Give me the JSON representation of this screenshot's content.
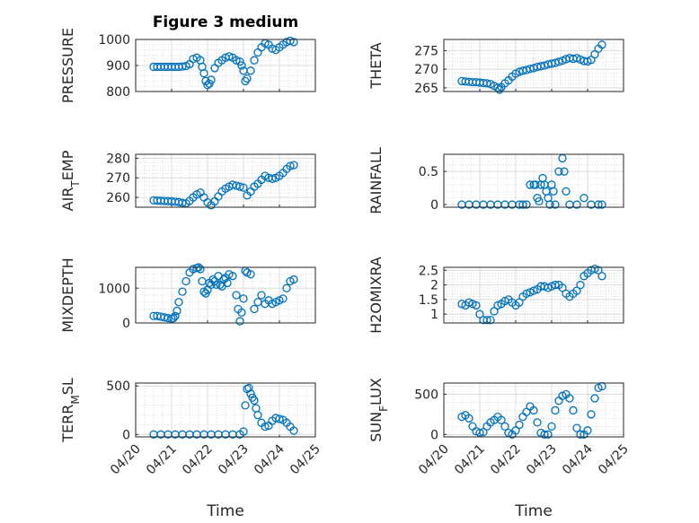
{
  "figure": {
    "title": "Figure 3 medium",
    "xlabel": "Time",
    "x_ticks": [
      "04/20",
      "04/21",
      "04/22",
      "04/23",
      "04/24",
      "04/25"
    ],
    "marker_color": "#0072BD"
  },
  "chart_data": [
    {
      "type": "scatter",
      "ylabel": "PRESSURE",
      "ylim": [
        800,
        1000
      ],
      "yticks": [
        "800",
        "900",
        "1000"
      ],
      "grid": true,
      "x": [
        20.5,
        20.6,
        20.7,
        20.8,
        20.9,
        21.0,
        21.1,
        21.2,
        21.3,
        21.4,
        21.5,
        21.6,
        21.7,
        21.8,
        21.85,
        21.9,
        21.95,
        22.0,
        22.05,
        22.1,
        22.2,
        22.3,
        22.4,
        22.5,
        22.6,
        22.7,
        22.8,
        22.9,
        22.95,
        23.0,
        23.05,
        23.1,
        23.2,
        23.3,
        23.4,
        23.5,
        23.6,
        23.7,
        23.8,
        23.9,
        24.0,
        24.1,
        24.2,
        24.3,
        24.4
      ],
      "y": [
        895,
        895,
        895,
        895,
        895,
        895,
        895,
        895,
        896,
        898,
        905,
        925,
        930,
        920,
        895,
        870,
        840,
        825,
        830,
        845,
        890,
        910,
        920,
        930,
        935,
        930,
        920,
        915,
        900,
        880,
        840,
        850,
        880,
        920,
        950,
        970,
        985,
        980,
        965,
        960,
        970,
        980,
        990,
        995,
        990
      ]
    },
    {
      "type": "scatter",
      "ylabel": "THETA",
      "ylim": [
        264,
        278
      ],
      "yticks": [
        "265",
        "270",
        "275"
      ],
      "grid": true,
      "x": [
        20.5,
        20.6,
        20.7,
        20.8,
        20.9,
        21.0,
        21.1,
        21.2,
        21.3,
        21.4,
        21.5,
        21.55,
        21.6,
        21.7,
        21.8,
        21.9,
        22.0,
        22.1,
        22.2,
        22.3,
        22.4,
        22.5,
        22.6,
        22.7,
        22.8,
        22.9,
        23.0,
        23.1,
        23.2,
        23.3,
        23.4,
        23.5,
        23.6,
        23.7,
        23.8,
        23.9,
        24.0,
        24.1,
        24.2,
        24.3,
        24.4
      ],
      "y": [
        266.8,
        266.7,
        266.6,
        266.5,
        266.5,
        266.4,
        266.3,
        266.2,
        266.0,
        265.5,
        265.0,
        264.5,
        265.2,
        266.2,
        267.0,
        268.0,
        268.8,
        269.3,
        269.6,
        269.8,
        270.1,
        270.3,
        270.6,
        270.8,
        271.0,
        271.3,
        271.5,
        271.7,
        272.0,
        272.3,
        272.7,
        273.0,
        272.8,
        273.0,
        272.6,
        272.2,
        272.1,
        272.5,
        274.0,
        275.5,
        276.6
      ]
    },
    {
      "type": "scatter",
      "ylabel": "AIR_TEMP",
      "ylim": [
        255,
        282
      ],
      "yticks": [
        "260",
        "270",
        "280"
      ],
      "grid": true,
      "x": [
        20.5,
        20.6,
        20.7,
        20.8,
        20.9,
        21.0,
        21.1,
        21.2,
        21.3,
        21.4,
        21.5,
        21.6,
        21.7,
        21.8,
        21.9,
        22.0,
        22.1,
        22.2,
        22.3,
        22.4,
        22.5,
        22.6,
        22.7,
        22.8,
        22.9,
        23.0,
        23.1,
        23.2,
        23.3,
        23.4,
        23.5,
        23.6,
        23.7,
        23.8,
        23.9,
        24.0,
        24.1,
        24.2,
        24.3,
        24.4
      ],
      "y": [
        258.5,
        258.4,
        258.3,
        258.2,
        258.1,
        258.0,
        257.8,
        257.6,
        257.2,
        257.0,
        258.2,
        260.0,
        261.5,
        262.5,
        260.0,
        257.5,
        256.0,
        258.0,
        260.5,
        263.0,
        264.5,
        265.5,
        266.5,
        266.0,
        265.5,
        265.0,
        261.0,
        263.0,
        265.5,
        267.0,
        269.0,
        271.0,
        270.0,
        269.5,
        270.0,
        271.0,
        272.5,
        274.5,
        276.0,
        276.5
      ]
    },
    {
      "type": "scatter",
      "ylabel": "RAINFALL",
      "ylim": [
        -0.04,
        0.76
      ],
      "yticks": [
        "0",
        "0.5"
      ],
      "grid": true,
      "x": [
        20.5,
        20.7,
        20.9,
        21.1,
        21.3,
        21.5,
        21.7,
        21.9,
        22.1,
        22.2,
        22.3,
        22.4,
        22.5,
        22.55,
        22.6,
        22.65,
        22.7,
        22.75,
        22.8,
        22.85,
        22.9,
        22.95,
        23.0,
        23.05,
        23.1,
        23.2,
        23.3,
        23.35,
        23.4,
        23.5,
        23.7,
        23.9,
        24.1,
        24.3,
        24.4
      ],
      "y": [
        0,
        0,
        0,
        0,
        0,
        0,
        0,
        0,
        0,
        0,
        0,
        0.3,
        0.3,
        0.3,
        0.1,
        0.05,
        0.3,
        0.4,
        0.3,
        0.2,
        0.1,
        0,
        0.3,
        0.2,
        0,
        0.5,
        0.7,
        0.5,
        0.2,
        0,
        0,
        0.1,
        0,
        0,
        0
      ]
    },
    {
      "type": "scatter",
      "ylabel": "MIXDEPTH",
      "ylim": [
        0,
        1600
      ],
      "yticks": [
        "0",
        "1000"
      ],
      "grid": true,
      "x": [
        20.5,
        20.6,
        20.7,
        20.8,
        20.9,
        21.0,
        21.05,
        21.1,
        21.15,
        21.2,
        21.3,
        21.4,
        21.5,
        21.6,
        21.7,
        21.75,
        21.8,
        21.85,
        21.9,
        21.95,
        22.0,
        22.05,
        22.1,
        22.15,
        22.2,
        22.25,
        22.3,
        22.35,
        22.4,
        22.45,
        22.5,
        22.55,
        22.6,
        22.7,
        22.8,
        22.85,
        22.9,
        22.95,
        23.0,
        23.05,
        23.1,
        23.2,
        23.3,
        23.4,
        23.5,
        23.6,
        23.7,
        23.8,
        23.9,
        24.0,
        24.1,
        24.2,
        24.3,
        24.4
      ],
      "y": [
        200,
        200,
        180,
        160,
        140,
        120,
        140,
        200,
        350,
        600,
        900,
        1200,
        1450,
        1550,
        1580,
        1600,
        1550,
        1200,
        900,
        850,
        950,
        1150,
        1100,
        1250,
        1200,
        1100,
        1350,
        1100,
        1050,
        1250,
        1300,
        1150,
        1400,
        1350,
        800,
        400,
        50,
        300,
        700,
        1500,
        1450,
        1400,
        400,
        600,
        800,
        550,
        650,
        550,
        600,
        650,
        700,
        1000,
        1200,
        1250
      ]
    },
    {
      "type": "scatter",
      "ylabel": "H2OMIXRA",
      "ylim": [
        0.7,
        2.6
      ],
      "yticks": [
        "1",
        "1.5",
        "2",
        "2.5"
      ],
      "grid": true,
      "x": [
        20.5,
        20.6,
        20.7,
        20.8,
        20.9,
        21.0,
        21.1,
        21.2,
        21.3,
        21.4,
        21.5,
        21.6,
        21.7,
        21.8,
        21.9,
        22.0,
        22.1,
        22.2,
        22.3,
        22.4,
        22.5,
        22.6,
        22.7,
        22.8,
        22.9,
        23.0,
        23.1,
        23.2,
        23.3,
        23.4,
        23.5,
        23.6,
        23.7,
        23.8,
        23.9,
        24.0,
        24.1,
        24.2,
        24.3,
        24.4
      ],
      "y": [
        1.35,
        1.3,
        1.4,
        1.35,
        1.3,
        1.0,
        0.8,
        0.8,
        0.8,
        1.1,
        1.3,
        1.35,
        1.45,
        1.5,
        1.4,
        1.3,
        1.4,
        1.6,
        1.7,
        1.75,
        1.8,
        1.85,
        1.95,
        1.95,
        1.9,
        1.95,
        2.0,
        2.0,
        1.9,
        1.7,
        1.6,
        1.7,
        1.8,
        2.0,
        2.3,
        2.4,
        2.5,
        2.55,
        2.5,
        2.3
      ]
    },
    {
      "type": "scatter",
      "ylabel": "TERR_MSL",
      "ylim": [
        -25,
        530
      ],
      "yticks": [
        "0",
        "500"
      ],
      "grid": true,
      "x": [
        20.5,
        20.7,
        20.9,
        21.1,
        21.3,
        21.5,
        21.7,
        21.9,
        22.1,
        22.3,
        22.5,
        22.7,
        22.9,
        23.0,
        23.05,
        23.1,
        23.15,
        23.2,
        23.25,
        23.3,
        23.35,
        23.4,
        23.5,
        23.6,
        23.7,
        23.8,
        23.9,
        24.0,
        24.1,
        24.2,
        24.3,
        24.4
      ],
      "y": [
        0,
        0,
        0,
        0,
        0,
        0,
        0,
        0,
        0,
        0,
        0,
        0,
        0,
        30,
        300,
        470,
        480,
        420,
        380,
        350,
        270,
        200,
        120,
        80,
        90,
        140,
        170,
        160,
        150,
        120,
        80,
        40
      ]
    },
    {
      "type": "scatter",
      "ylabel": "SUN_FLUX",
      "ylim": [
        -30,
        640
      ],
      "yticks": [
        "0",
        "500"
      ],
      "grid": true,
      "x": [
        20.5,
        20.6,
        20.7,
        20.8,
        20.9,
        21.0,
        21.1,
        21.2,
        21.3,
        21.4,
        21.5,
        21.6,
        21.7,
        21.8,
        21.9,
        22.0,
        22.1,
        22.2,
        22.3,
        22.4,
        22.5,
        22.6,
        22.7,
        22.8,
        22.9,
        23.0,
        23.1,
        23.2,
        23.3,
        23.4,
        23.5,
        23.6,
        23.7,
        23.8,
        23.9,
        24.0,
        24.1,
        24.2,
        24.3,
        24.4
      ],
      "y": [
        220,
        240,
        200,
        100,
        40,
        20,
        30,
        100,
        150,
        180,
        220,
        180,
        100,
        20,
        0,
        50,
        120,
        220,
        280,
        350,
        300,
        150,
        20,
        0,
        0,
        100,
        300,
        420,
        480,
        500,
        450,
        300,
        80,
        0,
        0,
        50,
        250,
        450,
        580,
        600
      ]
    }
  ]
}
